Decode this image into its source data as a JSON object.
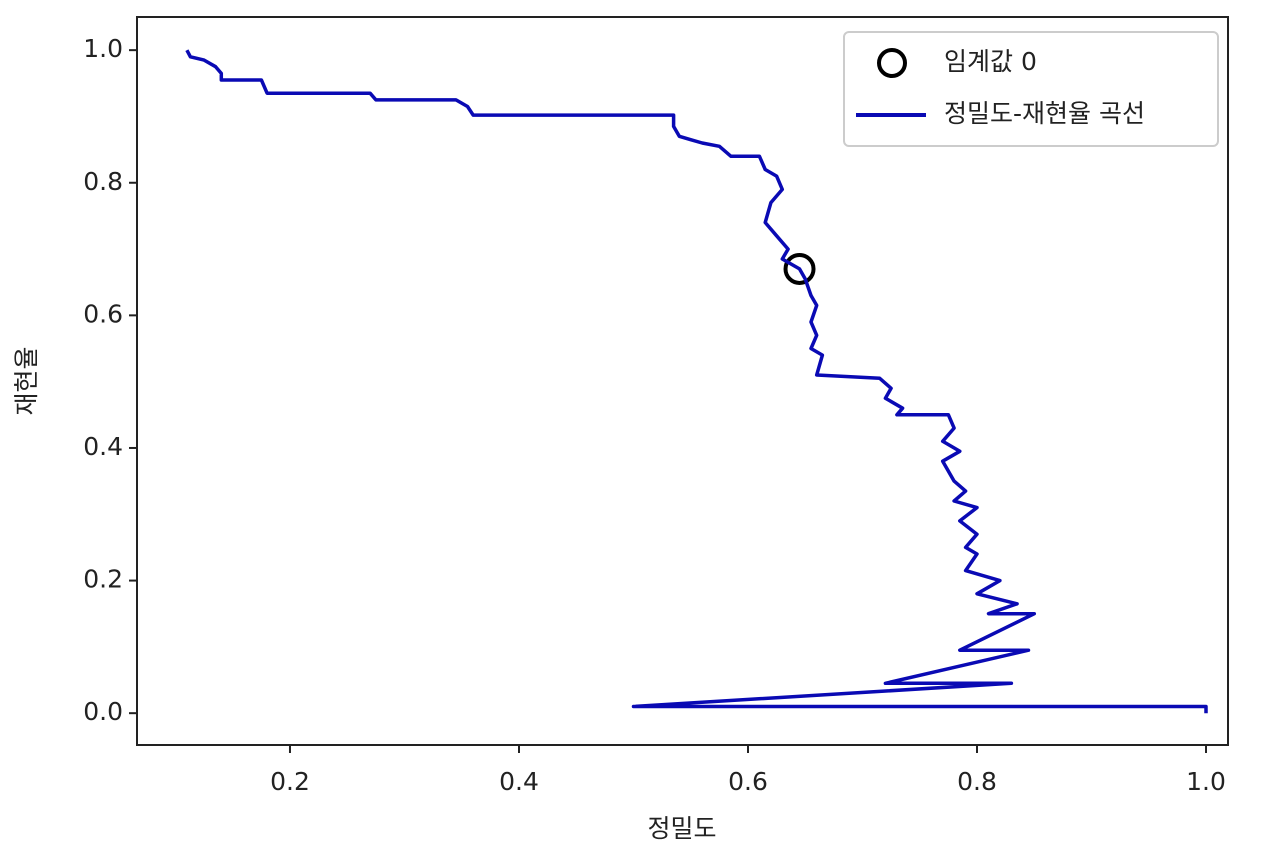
{
  "chart_data": {
    "type": "line",
    "xlabel": "정밀도",
    "ylabel": "재현율",
    "xlim": [
      0.0664,
      1.0192
    ],
    "ylim": [
      -0.048,
      1.05
    ],
    "xticks": [
      0.2,
      0.4,
      0.6,
      0.8,
      {
        "value": 1,
        "label": "1.0"
      }
    ],
    "yticks": [
      {
        "value": 0,
        "label": "0.0"
      },
      0.2,
      0.4,
      0.6,
      0.8,
      {
        "value": 1,
        "label": "1.0"
      }
    ],
    "legend": "upper right",
    "series": [
      {
        "name": "임계값 0",
        "type": "scatter",
        "marker": "circle",
        "color": "#000000",
        "x": [
          0.645
        ],
        "values": [
          0.67
        ]
      },
      {
        "name": "정밀도-재현율 곡선",
        "type": "line",
        "color": "#0a0ab4",
        "x": [
          0.11,
          0.113,
          0.125,
          0.135,
          0.14,
          0.14,
          0.175,
          0.18,
          0.27,
          0.275,
          0.345,
          0.355,
          0.36,
          0.535,
          0.535,
          0.54,
          0.55,
          0.56,
          0.575,
          0.585,
          0.61,
          0.615,
          0.625,
          0.63,
          0.62,
          0.615,
          0.625,
          0.635,
          0.63,
          0.645,
          0.65,
          0.655,
          0.66,
          0.655,
          0.66,
          0.655,
          0.665,
          0.66,
          0.715,
          0.725,
          0.72,
          0.735,
          0.73,
          0.775,
          0.78,
          0.77,
          0.785,
          0.77,
          0.78,
          0.79,
          0.78,
          0.8,
          0.785,
          0.8,
          0.79,
          0.8,
          0.79,
          0.82,
          0.8,
          0.835,
          0.81,
          0.85,
          0.785,
          0.845,
          0.72,
          0.83,
          0.5,
          1.0,
          1.0
        ],
        "values": [
          1.0,
          0.99,
          0.985,
          0.975,
          0.965,
          0.955,
          0.955,
          0.935,
          0.935,
          0.925,
          0.925,
          0.915,
          0.902,
          0.902,
          0.885,
          0.87,
          0.865,
          0.86,
          0.855,
          0.84,
          0.84,
          0.82,
          0.81,
          0.79,
          0.77,
          0.74,
          0.72,
          0.7,
          0.685,
          0.67,
          0.655,
          0.63,
          0.615,
          0.59,
          0.57,
          0.55,
          0.54,
          0.51,
          0.505,
          0.49,
          0.475,
          0.46,
          0.45,
          0.45,
          0.43,
          0.41,
          0.395,
          0.38,
          0.35,
          0.335,
          0.32,
          0.31,
          0.29,
          0.27,
          0.25,
          0.24,
          0.215,
          0.2,
          0.18,
          0.165,
          0.15,
          0.15,
          0.095,
          0.095,
          0.045,
          0.045,
          0.01,
          0.01,
          0.0
        ]
      }
    ]
  }
}
